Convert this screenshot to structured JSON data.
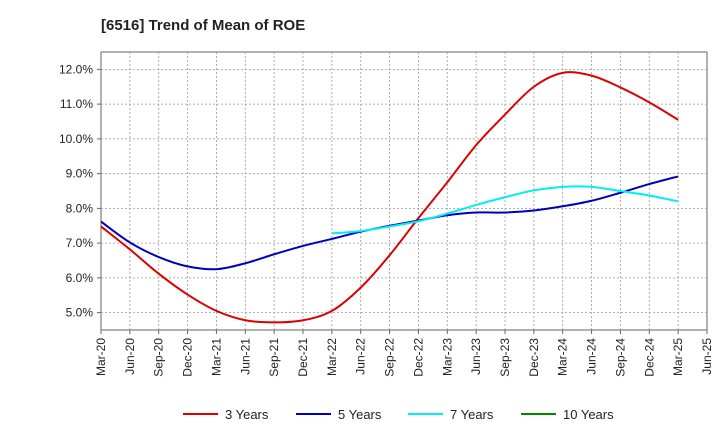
{
  "chart_data": {
    "type": "line",
    "title": "[6516]  Trend of Mean of ROE",
    "xlabel": "",
    "ylabel": "",
    "x": [
      "Mar-20",
      "Jun-20",
      "Sep-20",
      "Dec-20",
      "Mar-21",
      "Jun-21",
      "Sep-21",
      "Dec-21",
      "Mar-22",
      "Jun-22",
      "Sep-22",
      "Dec-22",
      "Mar-23",
      "Jun-23",
      "Sep-23",
      "Dec-23",
      "Mar-24",
      "Jun-24",
      "Sep-24",
      "Dec-24",
      "Mar-25",
      "Jun-25"
    ],
    "ylim": [
      4.5,
      12.5
    ],
    "yticks": [
      5.0,
      6.0,
      7.0,
      8.0,
      9.0,
      10.0,
      11.0,
      12.0
    ],
    "ytick_labels": [
      "5.0%",
      "6.0%",
      "7.0%",
      "8.0%",
      "9.0%",
      "10.0%",
      "11.0%",
      "12.0%"
    ],
    "grid": true,
    "legend_position": "bottom",
    "series": [
      {
        "name": "3 Years",
        "color": "#dd0000",
        "values": [
          7.48,
          6.82,
          6.12,
          5.52,
          5.05,
          4.78,
          4.72,
          4.78,
          5.05,
          5.72,
          6.65,
          7.72,
          8.75,
          9.82,
          10.7,
          11.5,
          11.9,
          11.82,
          11.48,
          11.05,
          10.55,
          null
        ]
      },
      {
        "name": "5 Years",
        "color": "#0000bb",
        "values": [
          7.62,
          7.02,
          6.6,
          6.33,
          6.25,
          6.42,
          6.68,
          6.92,
          7.12,
          7.33,
          7.5,
          7.65,
          7.8,
          7.88,
          7.88,
          7.94,
          8.06,
          8.22,
          8.45,
          8.7,
          8.92,
          null
        ]
      },
      {
        "name": "7 Years",
        "color": "#00eeee",
        "values": [
          null,
          null,
          null,
          null,
          null,
          null,
          null,
          null,
          7.28,
          7.35,
          7.48,
          7.63,
          7.85,
          8.1,
          8.32,
          8.52,
          8.62,
          8.62,
          8.5,
          8.37,
          8.2,
          null
        ]
      },
      {
        "name": "10 Years",
        "color": "#008800",
        "values": [
          null,
          null,
          null,
          null,
          null,
          null,
          null,
          null,
          null,
          null,
          null,
          null,
          null,
          null,
          null,
          null,
          null,
          null,
          null,
          null,
          null,
          null
        ]
      }
    ]
  }
}
